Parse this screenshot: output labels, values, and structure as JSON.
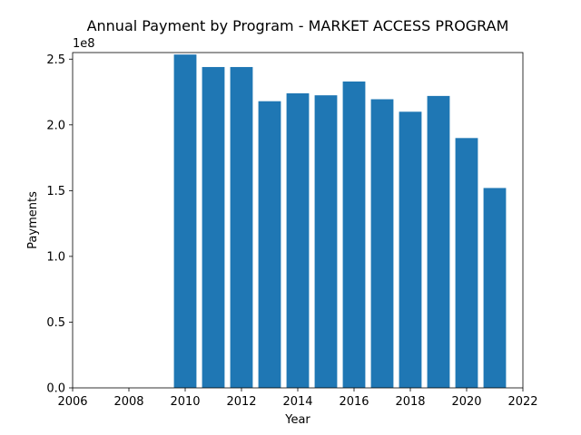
{
  "chart_data": {
    "type": "bar",
    "title": "Annual Payment by Program - MARKET ACCESS PROGRAM",
    "xlabel": "Year",
    "ylabel": "Payments",
    "y_offset_label": "1e8",
    "y_scale": 100000000,
    "xlim": [
      2006,
      2022
    ],
    "ylim": [
      0,
      255000000
    ],
    "x_ticks": [
      2006,
      2008,
      2010,
      2012,
      2014,
      2016,
      2018,
      2020,
      2022
    ],
    "y_ticks": [
      0,
      50000000,
      100000000,
      150000000,
      200000000,
      250000000
    ],
    "y_tick_labels": [
      "0.0",
      "0.5",
      "1.0",
      "1.5",
      "2.0",
      "2.5"
    ],
    "bar_color": "#1f77b4",
    "bar_width": 0.8,
    "x": [
      2010,
      2011,
      2012,
      2013,
      2014,
      2015,
      2016,
      2017,
      2018,
      2019,
      2020,
      2021
    ],
    "values": [
      253500000,
      244000000,
      244000000,
      218000000,
      224000000,
      222500000,
      233000000,
      219500000,
      210000000,
      222000000,
      190000000,
      152000000
    ]
  }
}
